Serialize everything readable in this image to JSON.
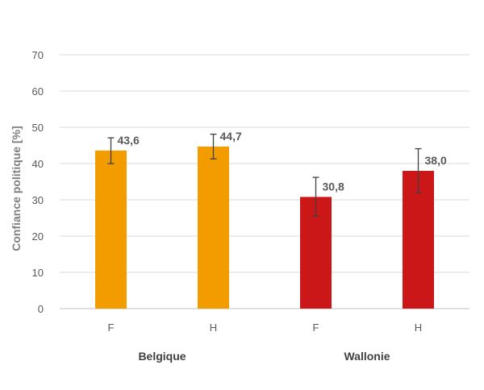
{
  "chart_data": {
    "type": "bar",
    "title": "",
    "xlabel": "",
    "ylabel": "Confiance politique [%]",
    "ylim": [
      0,
      70
    ],
    "yticks": [
      0,
      10,
      20,
      30,
      40,
      50,
      60,
      70
    ],
    "grid": true,
    "legend": "none",
    "groups": [
      {
        "label": "Belgique",
        "color": "#F39C00"
      },
      {
        "label": "Wallonie",
        "color": "#CC1719"
      }
    ],
    "categories": [
      "F",
      "H",
      "F",
      "H"
    ],
    "category_group": [
      0,
      0,
      1,
      1
    ],
    "values": [
      43.6,
      44.7,
      30.8,
      38.0
    ],
    "value_labels": [
      "43,6",
      "44,7",
      "30,8",
      "38,0"
    ],
    "error_low": [
      40.0,
      41.3,
      25.5,
      31.9
    ],
    "error_high": [
      47.1,
      48.1,
      36.2,
      44.1
    ]
  }
}
